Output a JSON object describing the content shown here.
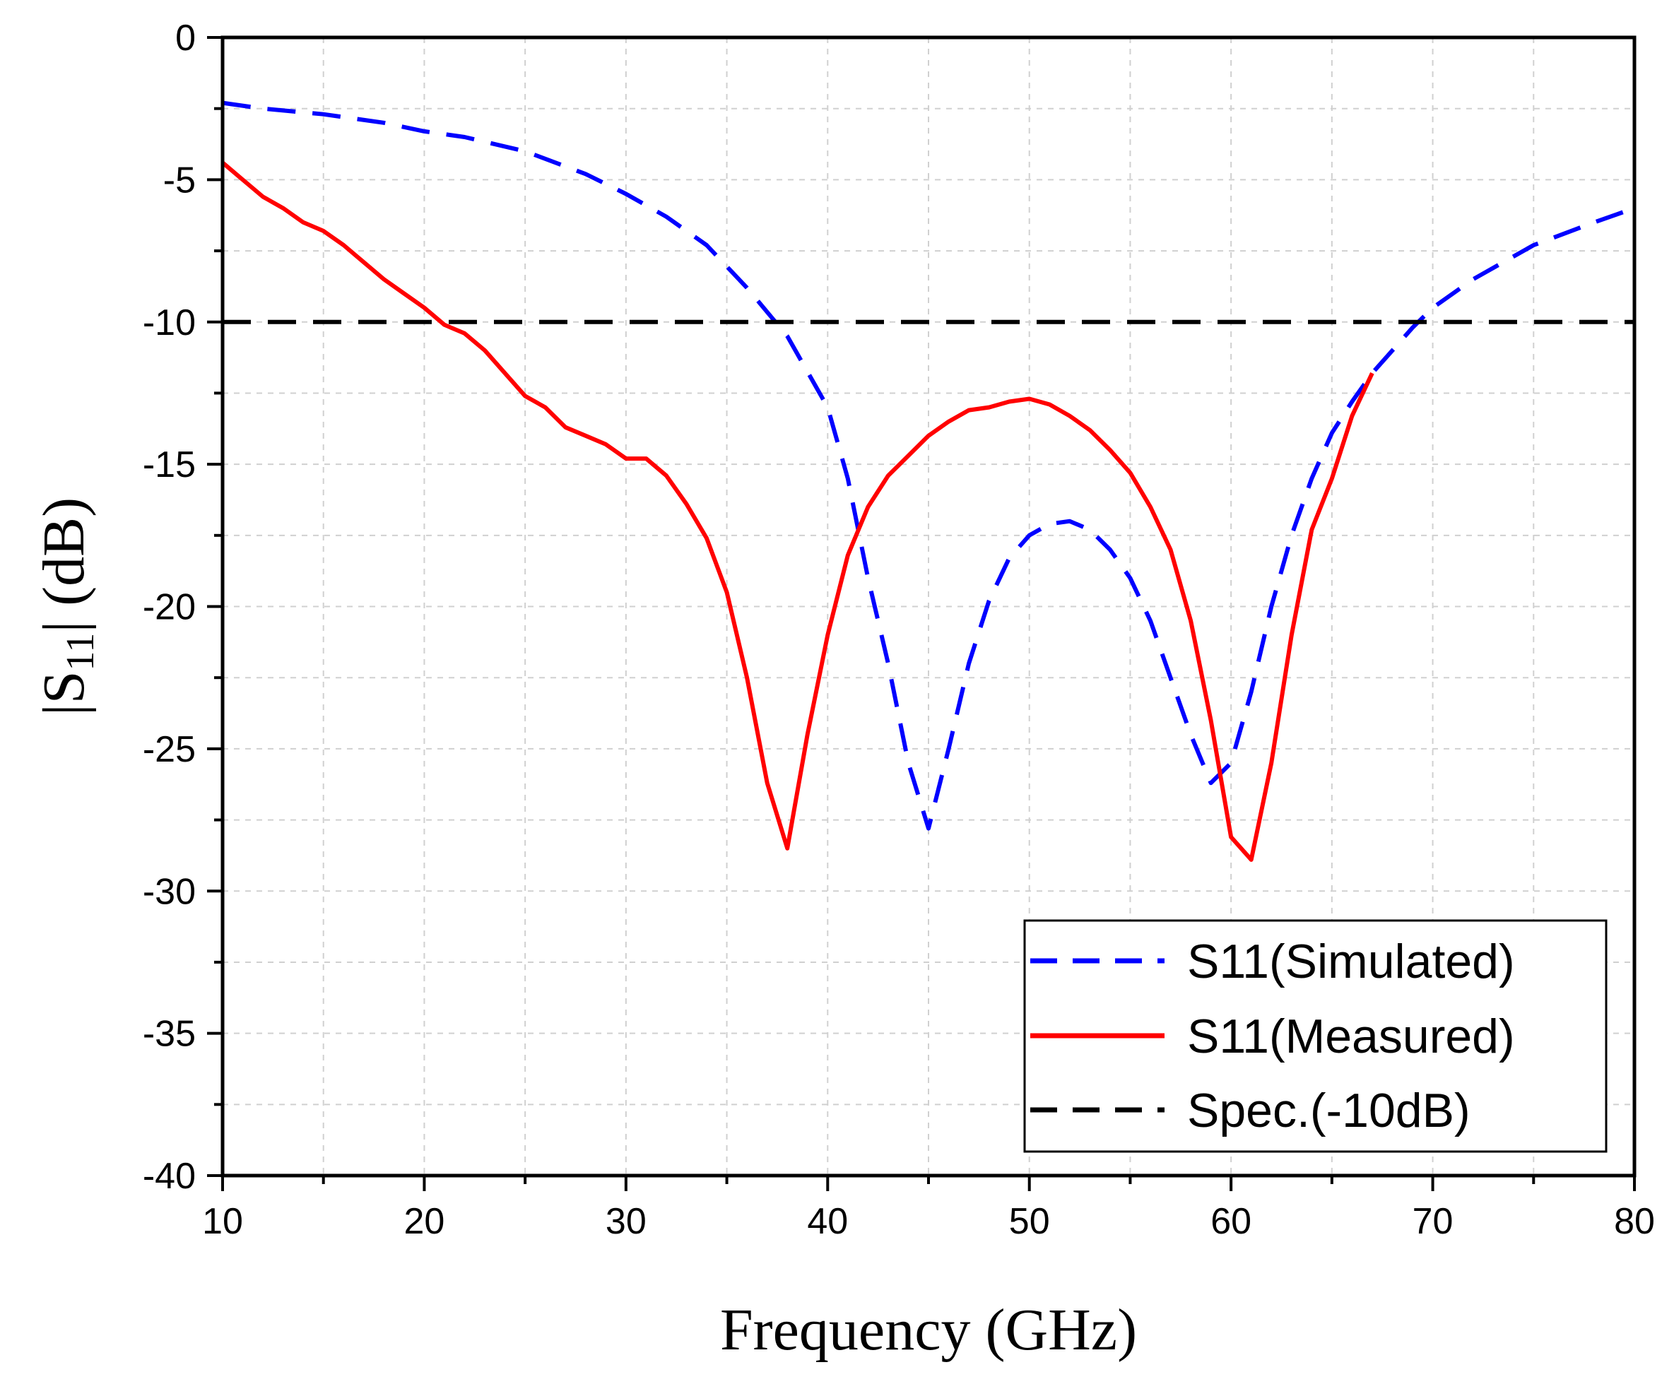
{
  "chart_data": {
    "type": "line",
    "title": "",
    "xlabel": "Frequency (GHz)",
    "ylabel": {
      "prefix": "|S",
      "subscript": "11",
      "suffix": "| (dB)"
    },
    "xlim": [
      10,
      80
    ],
    "ylim": [
      -40,
      0
    ],
    "xticks": [
      10,
      20,
      30,
      40,
      50,
      60,
      70,
      80
    ],
    "yticks": [
      0,
      -5,
      -10,
      -15,
      -20,
      -25,
      -30,
      -35,
      -40
    ],
    "grid": true,
    "legend_position": "bottom-right",
    "series": [
      {
        "name": "S11(Simulated)",
        "color": "#0000ff",
        "style": "dashed",
        "x": [
          10,
          12,
          15,
          18,
          20,
          22,
          25,
          28,
          30,
          32,
          34,
          36,
          38,
          40,
          41,
          42,
          43,
          44,
          45,
          46,
          47,
          48,
          49,
          50,
          51,
          52,
          53,
          54,
          55,
          56,
          57,
          58,
          59,
          60,
          61,
          62,
          63,
          64,
          65,
          66,
          67,
          68,
          69,
          70,
          72,
          75,
          78,
          80
        ],
        "y": [
          -2.3,
          -2.5,
          -2.7,
          -3.0,
          -3.3,
          -3.5,
          -4.0,
          -4.8,
          -5.5,
          -6.3,
          -7.3,
          -8.8,
          -10.5,
          -13.0,
          -15.5,
          -19.0,
          -22.0,
          -25.5,
          -27.8,
          -25.0,
          -22.0,
          -19.8,
          -18.3,
          -17.5,
          -17.1,
          -17.0,
          -17.3,
          -18.0,
          -19.0,
          -20.5,
          -22.5,
          -24.5,
          -26.2,
          -25.5,
          -23.0,
          -20.0,
          -17.5,
          -15.5,
          -13.9,
          -12.8,
          -11.8,
          -11.0,
          -10.2,
          -9.5,
          -8.5,
          -7.3,
          -6.5,
          -6.0
        ]
      },
      {
        "name": "S11(Measured)",
        "color": "#ff0000",
        "style": "solid",
        "x": [
          10,
          11,
          12,
          13,
          14,
          15,
          16,
          17,
          18,
          19,
          20,
          21,
          22,
          23,
          24,
          25,
          26,
          27,
          28,
          29,
          30,
          31,
          32,
          33,
          34,
          35,
          36,
          37,
          38,
          39,
          40,
          41,
          42,
          43,
          44,
          45,
          46,
          47,
          48,
          49,
          50,
          51,
          52,
          53,
          54,
          55,
          56,
          57,
          58,
          59,
          60,
          61,
          62,
          63,
          64,
          65,
          66,
          67
        ],
        "y": [
          -4.4,
          -5.0,
          -5.6,
          -6.0,
          -6.5,
          -6.8,
          -7.3,
          -7.9,
          -8.5,
          -9.0,
          -9.5,
          -10.1,
          -10.4,
          -11.0,
          -11.8,
          -12.6,
          -13.0,
          -13.7,
          -14.0,
          -14.3,
          -14.8,
          -14.8,
          -15.4,
          -16.4,
          -17.6,
          -19.5,
          -22.5,
          -26.2,
          -28.5,
          -24.5,
          -21.0,
          -18.2,
          -16.5,
          -15.4,
          -14.7,
          -14.0,
          -13.5,
          -13.1,
          -13.0,
          -12.8,
          -12.7,
          -12.9,
          -13.3,
          -13.8,
          -14.5,
          -15.3,
          -16.5,
          -18.0,
          -20.5,
          -24.0,
          -28.1,
          -28.9,
          -25.5,
          -21.0,
          -17.3,
          -15.5,
          -13.3,
          -11.8
        ]
      },
      {
        "name": "Spec.(-10dB)",
        "color": "#000000",
        "style": "dashed",
        "x": [
          10,
          80
        ],
        "y": [
          -10,
          -10
        ]
      }
    ]
  }
}
